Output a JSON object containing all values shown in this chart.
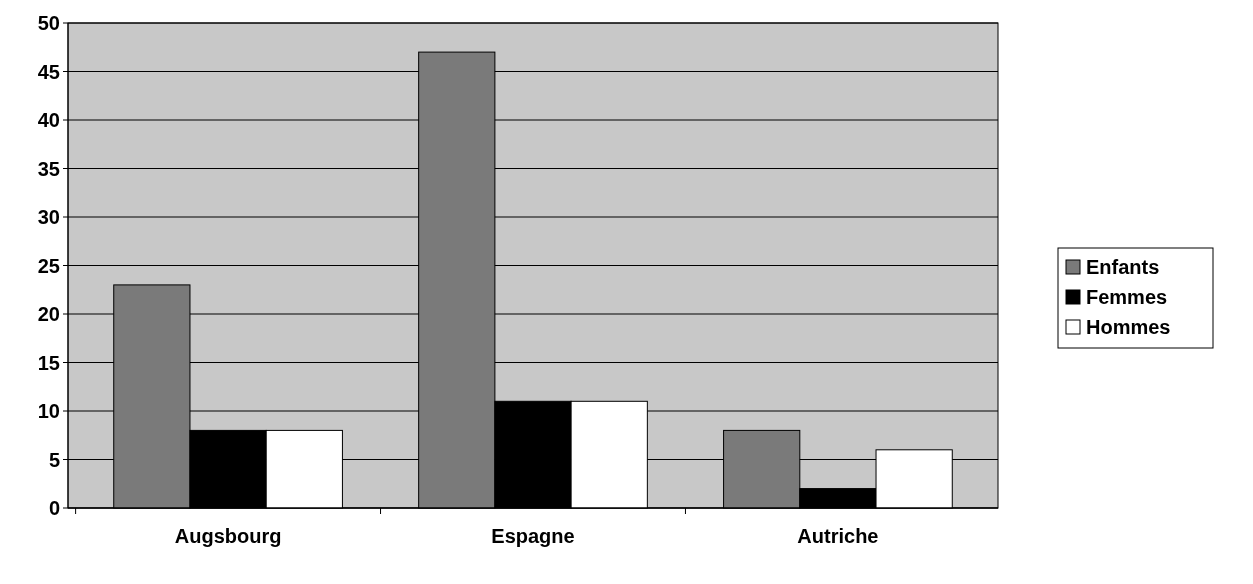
{
  "chart_data": {
    "type": "bar",
    "categories": [
      "Augsbourg",
      "Espagne",
      "Autriche"
    ],
    "series": [
      {
        "name": "Enfants",
        "color": "#7a7a7a",
        "values": [
          23,
          47,
          8
        ]
      },
      {
        "name": "Femmes",
        "color": "#000000",
        "values": [
          8,
          11,
          2
        ]
      },
      {
        "name": "Hommes",
        "color": "#ffffff",
        "values": [
          8,
          11,
          6
        ]
      }
    ],
    "ylim": [
      0,
      50
    ],
    "yticks": [
      0,
      5,
      10,
      15,
      20,
      25,
      30,
      35,
      40,
      45,
      50
    ],
    "grid": "y",
    "legend": "right"
  }
}
